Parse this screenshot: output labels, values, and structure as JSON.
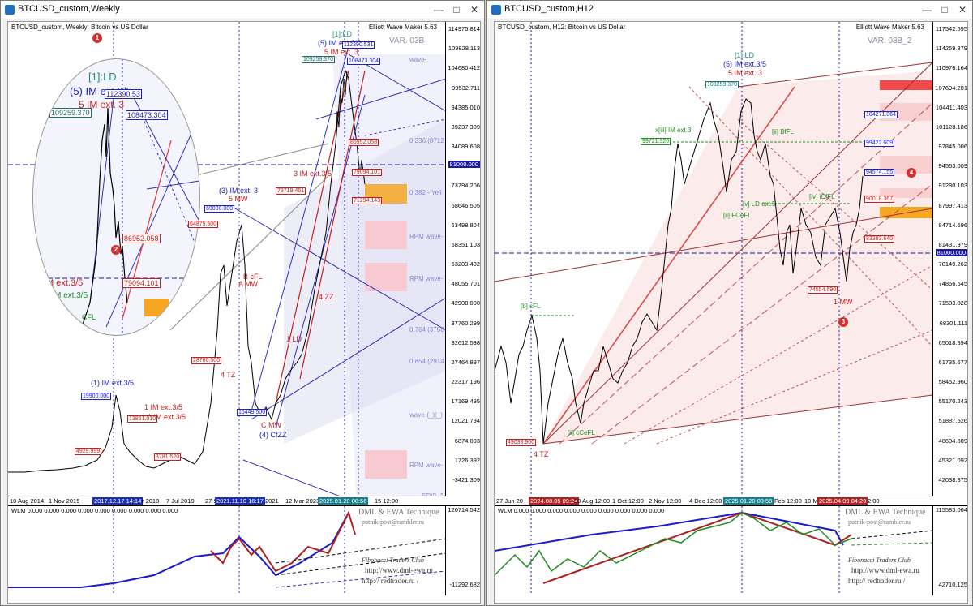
{
  "left": {
    "title": "BTCUSD_custom,Weekly",
    "symbol_line": "BTCUSD_custom, Weekly: Bitcoin vs US Dollar",
    "ew_maker": "Elliott Wave Maker 5.63",
    "variant": "VAR. 03B",
    "price_labels": [
      "114975.814",
      "109828.113",
      "104680.412",
      "99532.711",
      "94385.010",
      "89237.309",
      "84089.608",
      "78941.907",
      "73794.206",
      "68646.505",
      "63498.804",
      "58351.103",
      "53203.402",
      "48055.701",
      "42908.000",
      "37760.299",
      "32612.598",
      "27464.897",
      "22317.196",
      "17169.495",
      "12021.794",
      "6874.093",
      "1726.392",
      "-3421.309"
    ],
    "price_highlight": "81000.000",
    "sub_price_labels": [
      "120714.542",
      "-11292.682"
    ],
    "time_labels": [
      "10 Aug 2014",
      "1 Nov 2015",
      "2017.12.17 14:14",
      "r 2018",
      "7 Jul 2019",
      "27 S",
      "2021.11.10 16:17",
      "2021",
      "12 Mar 2023",
      "2025.01.20 08:56",
      "15 12:00"
    ],
    "wlm_text": "WLM 0.000 0.000 0.000 0.000 0.000 0.000 0.000 0.000 0.000",
    "footer": {
      "line1": "DML & EWA Technique",
      "line2": "putnik-post@rambler.ru",
      "line3": "Fibonacci    Traders    Club",
      "line4": "http://www.dml-ewa.ru",
      "line5": "http:// redtrader.ru /"
    },
    "waves": {
      "ld1": "[1]:LD",
      "im5": "(5) IM ext.3/5",
      "im5b": "5 IM ext. 3",
      "im3": "(3) IM ext. 3",
      "mw5": "5 MW",
      "im1": "(1) IM ext.3/5",
      "im1b": "1 IM ext.3/5",
      "im1c": "1 IM ext.3/5",
      "im3b": "3 IM ext.3/5",
      "cmw": "C MW",
      "cfzz": "(4) CfZZ",
      "ld1b": "1 LD",
      "tz4": "4 TZ",
      "zz4": "4 ZZ",
      "bcfl": "B cFL",
      "amw": "A MW"
    },
    "boxes": {
      "b1": "109259.370",
      "b2": "112390.531",
      "b3": "108473.304",
      "b4": "86952.058",
      "b5": "79094.101",
      "b6": "19900.000",
      "b7": "15449.500",
      "b8": "4929.999",
      "b9": "3781.520",
      "b10": "13851.010",
      "b11": "64875.500",
      "b12": "69000.000",
      "b13": "28780.500",
      "b14": "73719.461",
      "b15": "112390.531",
      "b16": "108473.304",
      "b17": "86952.058",
      "b18": "79094.101",
      "b19": "71294.143"
    },
    "zoom": {
      "ld": "[1]:LD",
      "im": "(5) IM ext.3/5",
      "im5": "5 IM ext. 3",
      "box1": "109259.370",
      "box2": "112390.53",
      "box3": "108473.304",
      "box4": "86952.058",
      "box5": "79094.101",
      "m_ext": "M ext.3/5",
      "m_ext2": "M ext.3/5",
      "cfl": "CFL"
    },
    "fib_labels": {
      "f1": "0.236 (8712",
      "f2": "0.382 - Yell",
      "f3": "0.764 (3758",
      "f4": "0.854 (2914",
      "w1": "wave-",
      "w2": "RPM wave-",
      "w3": "RPM wave-",
      "w4": "wave-(_)(_)",
      "w5": "RPM wave-",
      "w6": "ER(0_1"
    },
    "markers": [
      "1",
      "2"
    ]
  },
  "right": {
    "title": "BTCUSD_custom,H12",
    "symbol_line": "BTCUSD_custom, H12: Bitcoin vs US Dollar",
    "ew_maker": "Elliott Wave Maker 5.63",
    "variant": "VAR. 03B_2",
    "price_labels": [
      "117542.595",
      "114259.379",
      "110976.164",
      "107694.201",
      "104411.403",
      "101128.186",
      "97845.006",
      "94563.009",
      "91280.103",
      "87997.413",
      "84714.696",
      "81431.979",
      "78149.262",
      "74866.545",
      "71583.828",
      "68301.111",
      "65018.394",
      "61735.677",
      "58452.960",
      "55170.243",
      "51887.526",
      "48604.809",
      "45321.092",
      "42038.375"
    ],
    "price_highlight": "81000.000",
    "sub_price_labels": [
      "115583.064",
      "42710.125"
    ],
    "time_labels": [
      "27 Jun 20",
      "2024.08.05 09:24",
      "30 Aug 12:00",
      "1 Oct 12:00",
      "2 Nov 12:00",
      "4 Dec 12:00",
      "2025.01.20 08:58",
      "Feb 12:00",
      "10 M",
      "2025.04.09 04:29",
      "2:00"
    ],
    "wlm_text": "WLM 0.000 0.000 0.000 0.000 0.000 0.000 0.000 0.000 0.000",
    "footer": {
      "line1": "DML & EWA Technique",
      "line2": "putnik-post@rambler.ru",
      "line3": "Fibonacci    Traders    Club",
      "line4": "http://www.dml-ewa.ru",
      "line5": "http:// redtrader.ru /"
    },
    "waves": {
      "ld1": "[1]:LD",
      "im5": "(5) IM ext.3/5",
      "im5b": "5 IM ext. 3",
      "iii": "x[iii] IM ext.3",
      "bcfl": "[b] cFL",
      "cefl": "[ii] cCeFL",
      "tz4": "4 TZ",
      "mw1": "1 MW",
      "bfl": "[ii] BfFL",
      "icfl": "[iv] iCfFL",
      "ldext": "[v] LD ext.5",
      "fcefl": "[ii] FCeFL"
    },
    "boxes": {
      "b1": "109259.370",
      "b2": "99721.320",
      "b3": "104271.064",
      "b4": "99422.609",
      "b5": "94574.155",
      "b6": "90018.367",
      "b7": "83383.640",
      "b8": "74554.690",
      "b9": "49033.900"
    },
    "markers": [
      "3",
      "4"
    ]
  }
}
